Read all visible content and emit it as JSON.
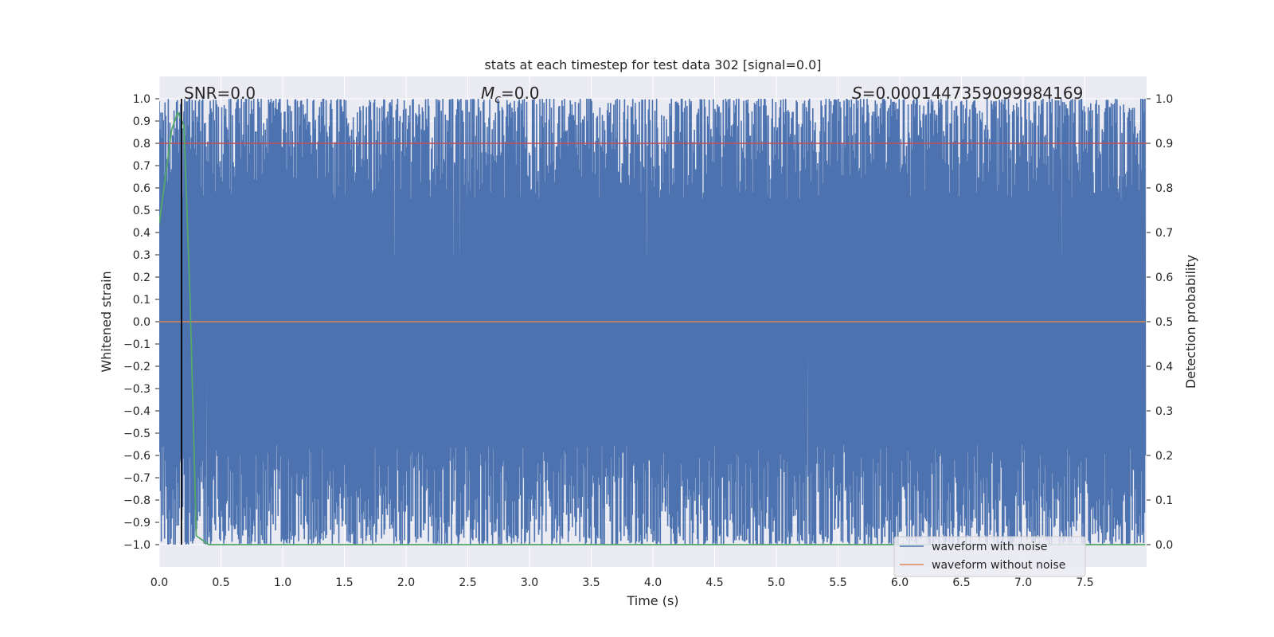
{
  "chart_data": {
    "type": "line",
    "title": "stats at each timestep for test data 302 [signal=0.0]",
    "xlabel": "Time (s)",
    "ylabel": "Whitened strain",
    "y2label": "Detection probability",
    "xlim": [
      0.0,
      8.0
    ],
    "ylim": [
      -1.1,
      1.1
    ],
    "y2lim": [
      -0.05,
      1.05
    ],
    "x_ticks": [
      "0.0",
      "0.5",
      "1.0",
      "1.5",
      "2.0",
      "2.5",
      "3.0",
      "3.5",
      "4.0",
      "4.5",
      "5.0",
      "5.5",
      "6.0",
      "6.5",
      "7.0",
      "7.5"
    ],
    "y_ticks": [
      "1.0",
      "0.9",
      "0.8",
      "0.7",
      "0.6",
      "0.5",
      "0.4",
      "0.3",
      "0.2",
      "0.1",
      "0.0",
      "−0.1",
      "−0.2",
      "−0.3",
      "−0.4",
      "−0.5",
      "−0.6",
      "−0.7",
      "−0.8",
      "−0.9",
      "−1.0"
    ],
    "y2_ticks": [
      "1.0",
      "0.9",
      "0.8",
      "0.7",
      "0.6",
      "0.5",
      "0.4",
      "0.3",
      "0.2",
      "0.1",
      "0.0"
    ],
    "grid": true,
    "legend_position": "lower-right",
    "annotations": {
      "snr": "SNR=0.0",
      "mc": "=0.0",
      "mc_symbol": "M",
      "mc_sub": "c",
      "s": "=0.0001447359099984169",
      "s_symbol": "S"
    },
    "series": [
      {
        "name": "waveform with noise",
        "color": "#4c72b0",
        "axis": "left",
        "x_range": [
          0.0,
          7.99
        ],
        "y_range": [
          -1.0,
          1.0
        ],
        "description_values": "dense noise spanning roughly -1.0 to 1.0"
      },
      {
        "name": "waveform without noise",
        "color": "#dd8452",
        "axis": "left",
        "x": [
          0.0,
          7.99
        ],
        "y": [
          0.0,
          0.0
        ]
      },
      {
        "color": "#55a868",
        "axis": "right",
        "x": [
          0.0,
          0.1,
          0.15,
          0.2,
          0.25,
          0.3,
          0.4,
          1.0,
          2.0,
          3.0,
          4.0,
          5.0,
          6.0,
          7.0,
          7.99
        ],
        "y": [
          0.72,
          0.93,
          0.97,
          0.94,
          0.55,
          0.02,
          0.0,
          0.0,
          0.0,
          0.0,
          0.0,
          0.0,
          0.0,
          0.0,
          0.0
        ]
      }
    ],
    "hlines_right_axis": [
      {
        "y": 0.9,
        "color": "#c44e52"
      }
    ],
    "vlines": [
      {
        "x": 0.18,
        "color": "#000000",
        "y_from": -1.0,
        "y_to": 1.0
      }
    ]
  }
}
